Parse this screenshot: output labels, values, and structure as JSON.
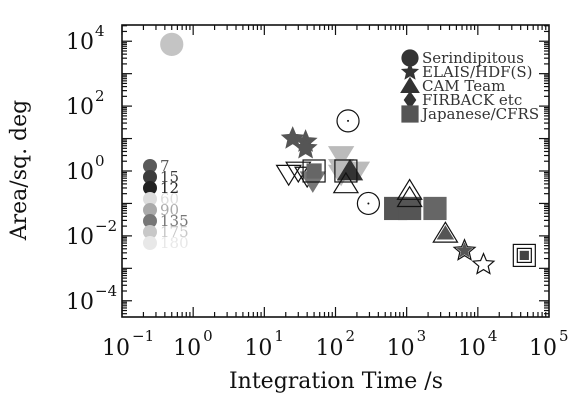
{
  "chart_data": {
    "type": "scatter",
    "title": "",
    "xlabel": "Integration Time /s",
    "ylabel": "Area/sq. deg",
    "xscale": "log",
    "yscale": "log",
    "xlim": [
      0.1,
      100000
    ],
    "ylim": [
      3.16e-05,
      31623
    ],
    "x_ticks": [
      {
        "value": 0.1,
        "base": "10",
        "exp": "−1"
      },
      {
        "value": 1,
        "base": "10",
        "exp": "0"
      },
      {
        "value": 10,
        "base": "10",
        "exp": "1"
      },
      {
        "value": 100,
        "base": "10",
        "exp": "2"
      },
      {
        "value": 1000,
        "base": "10",
        "exp": "3"
      },
      {
        "value": 10000,
        "base": "10",
        "exp": "4"
      },
      {
        "value": 100000,
        "base": "10",
        "exp": "5"
      }
    ],
    "y_ticks": [
      {
        "value": 0.0001,
        "base": "10",
        "exp": "−4"
      },
      {
        "value": 0.01,
        "base": "10",
        "exp": "−2"
      },
      {
        "value": 1,
        "base": "10",
        "exp": "0"
      },
      {
        "value": 100,
        "base": "10",
        "exp": "2"
      },
      {
        "value": 10000,
        "base": "10",
        "exp": "4"
      }
    ],
    "legend": {
      "placement": "top-right",
      "entries": [
        {
          "label": "Serindipitous",
          "marker": "circle",
          "color": "#333333"
        },
        {
          "label": "ELAIS/HDF(S)",
          "marker": "star",
          "color": "#333333"
        },
        {
          "label": "CAM Team",
          "marker": "triangle",
          "color": "#333333"
        },
        {
          "label": "FIRBACK etc",
          "marker": "diamond",
          "color": "#333333"
        },
        {
          "label": "Japanese/CFRS",
          "marker": "square",
          "color": "#555555"
        }
      ]
    },
    "wavelength_legend": {
      "placement": "left",
      "entries": [
        {
          "label": "7",
          "color": "#5a5a5a"
        },
        {
          "label": "15",
          "color": "#3c3c3c"
        },
        {
          "label": "12",
          "color": "#222222"
        },
        {
          "label": "60",
          "color": "#dddddd"
        },
        {
          "label": "90",
          "color": "#aaaaaa"
        },
        {
          "label": "135",
          "color": "#777777"
        },
        {
          "label": "175",
          "color": "#c8c8c8"
        },
        {
          "label": "180",
          "color": "#e8e8e8"
        }
      ]
    },
    "points": [
      {
        "x": 0.5,
        "y": 8000,
        "shape": "circle",
        "filled": true,
        "color": "#c4c4c4"
      },
      {
        "x": 25,
        "y": 10,
        "shape": "star",
        "filled": true,
        "color": "#555555"
      },
      {
        "x": 38,
        "y": 8,
        "shape": "star",
        "filled": true,
        "color": "#555555"
      },
      {
        "x": 38,
        "y": 5,
        "shape": "star",
        "filled": true,
        "color": "#555555"
      },
      {
        "x": 150,
        "y": 35,
        "shape": "circle",
        "filled": false,
        "color": "#111111"
      },
      {
        "x": 120,
        "y": 3,
        "shape": "triangle-down",
        "filled": true,
        "color": "#bbbbbb"
      },
      {
        "x": 120,
        "y": 1.2,
        "shape": "triangle-down",
        "filled": true,
        "color": "#bbbbbb"
      },
      {
        "x": 120,
        "y": 0.8,
        "shape": "triangle-down",
        "filled": true,
        "color": "#bbbbbb"
      },
      {
        "x": 200,
        "y": 1,
        "shape": "triangle-down",
        "filled": true,
        "color": "#bbbbbb"
      },
      {
        "x": 160,
        "y": 1,
        "shape": "triangle",
        "filled": true,
        "color": "#333333"
      },
      {
        "x": 22,
        "y": 0.8,
        "shape": "triangle-down",
        "filled": false,
        "color": "#111111"
      },
      {
        "x": 30,
        "y": 1,
        "shape": "triangle-down",
        "filled": false,
        "color": "#111111"
      },
      {
        "x": 40,
        "y": 0.7,
        "shape": "triangle-down",
        "filled": false,
        "color": "#111111"
      },
      {
        "x": 48,
        "y": 0.5,
        "shape": "triangle-down",
        "filled": true,
        "color": "#777777"
      },
      {
        "x": 50,
        "y": 1,
        "shape": "square",
        "filled": false,
        "color": "#111111"
      },
      {
        "x": 50,
        "y": 1,
        "shape": "square",
        "filled": true,
        "color": "#666666",
        "small": true
      },
      {
        "x": 140,
        "y": 1,
        "shape": "square",
        "filled": false,
        "color": "#111111"
      },
      {
        "x": 140,
        "y": 0.4,
        "shape": "triangle",
        "filled": false,
        "color": "#111111"
      },
      {
        "x": 290,
        "y": 0.1,
        "shape": "circle",
        "filled": false,
        "color": "#111111"
      },
      {
        "x": 700,
        "y": 0.07,
        "shape": "square",
        "filled": true,
        "color": "#555555"
      },
      {
        "x": 1100,
        "y": 0.07,
        "shape": "square",
        "filled": true,
        "color": "#555555"
      },
      {
        "x": 1100,
        "y": 0.25,
        "shape": "triangle",
        "filled": false,
        "color": "#111111"
      },
      {
        "x": 1100,
        "y": 0.15,
        "shape": "triangle",
        "filled": false,
        "color": "#111111"
      },
      {
        "x": 2500,
        "y": 0.07,
        "shape": "square",
        "filled": true,
        "color": "#666666"
      },
      {
        "x": 3500,
        "y": 0.012,
        "shape": "triangle",
        "filled": false,
        "color": "#111111"
      },
      {
        "x": 3500,
        "y": 0.012,
        "shape": "triangle",
        "filled": true,
        "color": "#555555",
        "small": true
      },
      {
        "x": 6500,
        "y": 0.0035,
        "shape": "star",
        "filled": false,
        "color": "#111111"
      },
      {
        "x": 6500,
        "y": 0.0035,
        "shape": "star",
        "filled": true,
        "color": "#555555",
        "small": true
      },
      {
        "x": 12000,
        "y": 0.0013,
        "shape": "star",
        "filled": false,
        "color": "#111111"
      },
      {
        "x": 45000,
        "y": 0.0025,
        "shape": "square",
        "filled": false,
        "color": "#111111"
      },
      {
        "x": 45000,
        "y": 0.0025,
        "shape": "square",
        "filled": false,
        "color": "#111111",
        "small": true
      },
      {
        "x": 45000,
        "y": 0.0025,
        "shape": "square",
        "filled": true,
        "color": "#444444",
        "tiny": true
      }
    ]
  }
}
